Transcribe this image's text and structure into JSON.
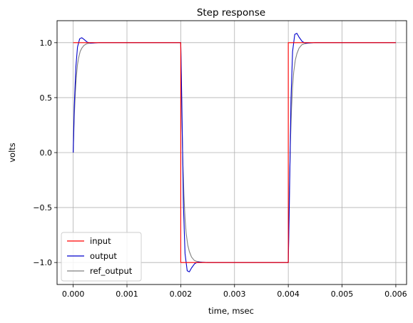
{
  "chart_data": {
    "type": "line",
    "title": "Step response",
    "xlabel": "time, msec",
    "ylabel": "volts",
    "xlim": [
      -0.0003,
      0.0062
    ],
    "ylim": [
      -1.2,
      1.2
    ],
    "grid": true,
    "legend_position": "lower-left",
    "xticks": [
      0.0,
      0.001,
      0.002,
      0.003,
      0.004,
      0.005,
      0.006
    ],
    "xtick_labels": [
      "0.000",
      "0.001",
      "0.002",
      "0.003",
      "0.004",
      "0.005",
      "0.006"
    ],
    "yticks": [
      1.0,
      0.5,
      0.0,
      -0.5,
      -1.0
    ],
    "ytick_labels": [
      "1.0",
      "0.5",
      "0.0",
      "−0.5",
      "−1.0"
    ],
    "series": [
      {
        "name": "input",
        "color": "#ff0000",
        "x": [
          0.0,
          0.002,
          0.002,
          0.004,
          0.004,
          0.006
        ],
        "y": [
          1.0,
          1.0,
          -1.0,
          -1.0,
          1.0,
          1.0
        ]
      },
      {
        "name": "output",
        "color": "#0000cc",
        "x": [
          0.0,
          2e-05,
          5e-05,
          8e-05,
          0.00012,
          0.00016,
          0.0002,
          0.00026,
          0.00032,
          0.0004,
          0.0005,
          0.002,
          0.00202,
          0.00205,
          0.00208,
          0.00212,
          0.00216,
          0.0022,
          0.00226,
          0.00232,
          0.0024,
          0.0025,
          0.004,
          0.00402,
          0.00405,
          0.00408,
          0.00412,
          0.00416,
          0.0042,
          0.00426,
          0.00432,
          0.0044,
          0.0045,
          0.006
        ],
        "y": [
          0.0,
          0.42,
          0.78,
          0.96,
          1.035,
          1.045,
          1.03,
          1.005,
          0.995,
          0.998,
          1.0,
          1.0,
          0.46,
          -0.48,
          -0.92,
          -1.075,
          -1.085,
          -1.05,
          -1.01,
          -0.995,
          -0.998,
          -1.0,
          -1.0,
          -0.46,
          0.48,
          0.92,
          1.075,
          1.085,
          1.05,
          1.01,
          0.995,
          0.998,
          1.0,
          1.0
        ]
      },
      {
        "name": "ref_output",
        "color": "#808080",
        "x": [
          0.0,
          2e-05,
          4e-05,
          6e-05,
          8e-05,
          0.0001,
          0.00013,
          0.00016,
          0.0002,
          0.00025,
          0.0003,
          0.0004,
          0.0005,
          0.002,
          0.00202,
          0.00204,
          0.00206,
          0.00208,
          0.0021,
          0.00213,
          0.00216,
          0.0022,
          0.00225,
          0.0023,
          0.0024,
          0.0025,
          0.004,
          0.00402,
          0.00404,
          0.00406,
          0.00408,
          0.0041,
          0.00413,
          0.00416,
          0.0042,
          0.00425,
          0.0043,
          0.0044,
          0.0045,
          0.006
        ],
        "y": [
          0.0,
          0.33,
          0.55,
          0.7,
          0.8,
          0.86,
          0.92,
          0.95,
          0.975,
          0.99,
          0.995,
          0.999,
          1.0,
          1.0,
          0.33,
          -0.1,
          -0.4,
          -0.6,
          -0.73,
          -0.84,
          -0.9,
          -0.95,
          -0.98,
          -0.99,
          -0.998,
          -1.0,
          -1.0,
          -0.33,
          0.1,
          0.4,
          0.6,
          0.73,
          0.84,
          0.9,
          0.95,
          0.98,
          0.99,
          0.998,
          1.0,
          1.0
        ]
      }
    ]
  }
}
